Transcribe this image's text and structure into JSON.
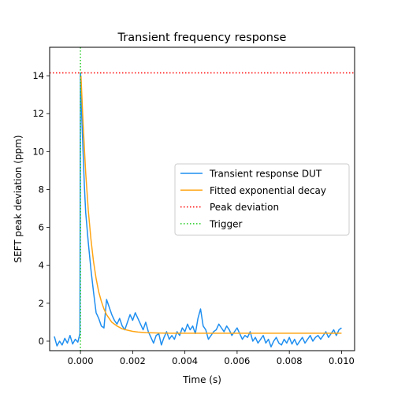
{
  "chart_data": {
    "type": "line",
    "title": "Transient frequency response",
    "xlabel": "Time (s)",
    "ylabel": "SEFT peak deviation (ppm)",
    "xlim": [
      -0.00118,
      0.0105
    ],
    "ylim": [
      -0.5,
      15.5
    ],
    "x_ticks": [
      0.0,
      0.002,
      0.004,
      0.006,
      0.008,
      0.01
    ],
    "x_tick_labels": [
      "0.000",
      "0.002",
      "0.004",
      "0.006",
      "0.008",
      "0.010"
    ],
    "y_ticks": [
      0,
      2,
      4,
      6,
      8,
      10,
      12,
      14
    ],
    "y_tick_labels": [
      "0",
      "2",
      "4",
      "6",
      "8",
      "10",
      "12",
      "14"
    ],
    "grid": false,
    "legend_position": "center-right",
    "series": [
      {
        "name": "Transient response DUT",
        "color": "#1f8ff0",
        "style": "solid",
        "x": [
          -0.001,
          -0.0009,
          -0.0008,
          -0.0007,
          -0.0006,
          -0.0005,
          -0.0004,
          -0.0003,
          -0.0002,
          -0.0001,
          -2e-05,
          0.0,
          2e-05,
          5e-05,
          0.0001,
          0.00015,
          0.0002,
          0.0003,
          0.0004,
          0.0005,
          0.0006,
          0.0007,
          0.0008,
          0.0009,
          0.001,
          0.0011,
          0.0012,
          0.0013,
          0.0014,
          0.0015,
          0.0016,
          0.0017,
          0.0018,
          0.0019,
          0.002,
          0.0021,
          0.0022,
          0.0023,
          0.0024,
          0.0025,
          0.0026,
          0.0027,
          0.0028,
          0.0029,
          0.003,
          0.0031,
          0.0032,
          0.0033,
          0.0034,
          0.0035,
          0.0036,
          0.0037,
          0.0038,
          0.0039,
          0.004,
          0.0041,
          0.0042,
          0.0043,
          0.0044,
          0.0045,
          0.0046,
          0.0047,
          0.0048,
          0.0049,
          0.005,
          0.0051,
          0.0052,
          0.0053,
          0.0054,
          0.0055,
          0.0056,
          0.0057,
          0.0058,
          0.0059,
          0.006,
          0.0061,
          0.0062,
          0.0063,
          0.0064,
          0.0065,
          0.0066,
          0.0067,
          0.0068,
          0.0069,
          0.007,
          0.0071,
          0.0072,
          0.0073,
          0.0074,
          0.0075,
          0.0076,
          0.0077,
          0.0078,
          0.0079,
          0.008,
          0.0081,
          0.0082,
          0.0083,
          0.0084,
          0.0085,
          0.0086,
          0.0087,
          0.0088,
          0.0089,
          0.009,
          0.0091,
          0.0092,
          0.0093,
          0.0094,
          0.0095,
          0.0096,
          0.0097,
          0.0098,
          0.0099,
          0.01
        ],
        "y": [
          0.25,
          -0.25,
          0.0,
          -0.2,
          0.15,
          -0.1,
          0.3,
          -0.15,
          0.1,
          -0.05,
          0.4,
          14.15,
          13.8,
          11.9,
          10.0,
          8.2,
          6.8,
          5.2,
          3.8,
          2.6,
          1.5,
          1.2,
          0.8,
          0.7,
          2.2,
          1.8,
          1.4,
          1.1,
          0.9,
          1.2,
          0.8,
          0.6,
          1.0,
          1.4,
          1.1,
          1.5,
          1.2,
          0.9,
          0.6,
          1.0,
          0.5,
          0.2,
          -0.1,
          0.3,
          0.4,
          -0.2,
          0.2,
          0.5,
          0.1,
          0.3,
          0.1,
          0.5,
          0.3,
          0.7,
          0.5,
          0.9,
          0.6,
          0.8,
          0.4,
          1.2,
          1.7,
          0.8,
          0.6,
          0.1,
          0.3,
          0.5,
          0.6,
          0.9,
          0.7,
          0.5,
          0.8,
          0.6,
          0.3,
          0.5,
          0.7,
          0.4,
          0.1,
          0.3,
          0.2,
          0.5,
          0.0,
          0.2,
          -0.1,
          0.1,
          0.3,
          -0.1,
          0.1,
          -0.3,
          0.0,
          0.2,
          -0.1,
          -0.2,
          0.1,
          -0.1,
          0.2,
          -0.15,
          0.1,
          -0.2,
          0.0,
          0.2,
          -0.1,
          0.1,
          0.3,
          0.0,
          0.2,
          0.3,
          0.1,
          0.3,
          0.5,
          0.2,
          0.4,
          0.6,
          0.3,
          0.6,
          0.7
        ]
      },
      {
        "name": "Fitted exponential decay",
        "color": "#ffa514",
        "style": "solid",
        "x": [
          2e-05,
          0.0001,
          0.0002,
          0.0003,
          0.0004,
          0.0005,
          0.0006,
          0.0007,
          0.0008,
          0.0009,
          0.001,
          0.0012,
          0.0014,
          0.0016,
          0.0018,
          0.002,
          0.0022,
          0.0025,
          0.003,
          0.0035,
          0.004,
          0.005,
          0.006,
          0.007,
          0.008,
          0.009,
          0.01
        ],
        "y": [
          14.0,
          11.5,
          8.9,
          6.9,
          5.4,
          4.2,
          3.3,
          2.6,
          2.1,
          1.7,
          1.4,
          1.0,
          0.8,
          0.65,
          0.58,
          0.52,
          0.48,
          0.45,
          0.43,
          0.42,
          0.42,
          0.42,
          0.42,
          0.42,
          0.42,
          0.42,
          0.42
        ]
      }
    ],
    "reference_lines": [
      {
        "name": "Peak deviation",
        "orientation": "horizontal",
        "value": 14.15,
        "color": "#ff0000",
        "style": "dotted"
      },
      {
        "name": "Trigger",
        "orientation": "vertical",
        "value": 0.0,
        "color": "#22cc22",
        "style": "dotted"
      }
    ],
    "legend": [
      "Transient response DUT",
      "Fitted exponential decay",
      "Peak deviation",
      "Trigger"
    ]
  }
}
